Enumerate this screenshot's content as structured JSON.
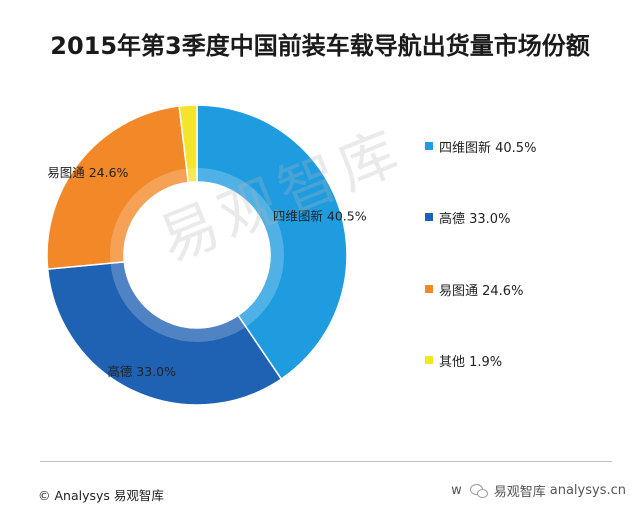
{
  "title": "2015年第3季度中国前装车载导航出货量市场份额",
  "watermark": "易观智库",
  "footer": {
    "left": "© Analysys 易观智库",
    "right_prefix": "w",
    "right_brand": "易观智库",
    "right_url": "analysys.cn"
  },
  "icons": {
    "wechat": "wechat-icon"
  },
  "chart_data": {
    "type": "pie",
    "subtype": "donut",
    "categories": [
      "四维图新",
      "高德",
      "易图通",
      "其他"
    ],
    "values": [
      40.5,
      33.0,
      24.6,
      1.9
    ],
    "unit": "%",
    "slice_labels": [
      "四维图新 40.5%",
      "高德 33.0%",
      "易图通 24.6%",
      ""
    ],
    "colors": [
      "#1f9ce0",
      "#1f61b3",
      "#f28828",
      "#f5e52a"
    ],
    "legend": {
      "placement": "right",
      "entries": [
        "四维图新 40.5%",
        "高德 33.0%",
        "易图通 24.6%",
        "其他 1.9%"
      ]
    },
    "title": "2015年第3季度中国前装车载导航出货量市场份额"
  }
}
